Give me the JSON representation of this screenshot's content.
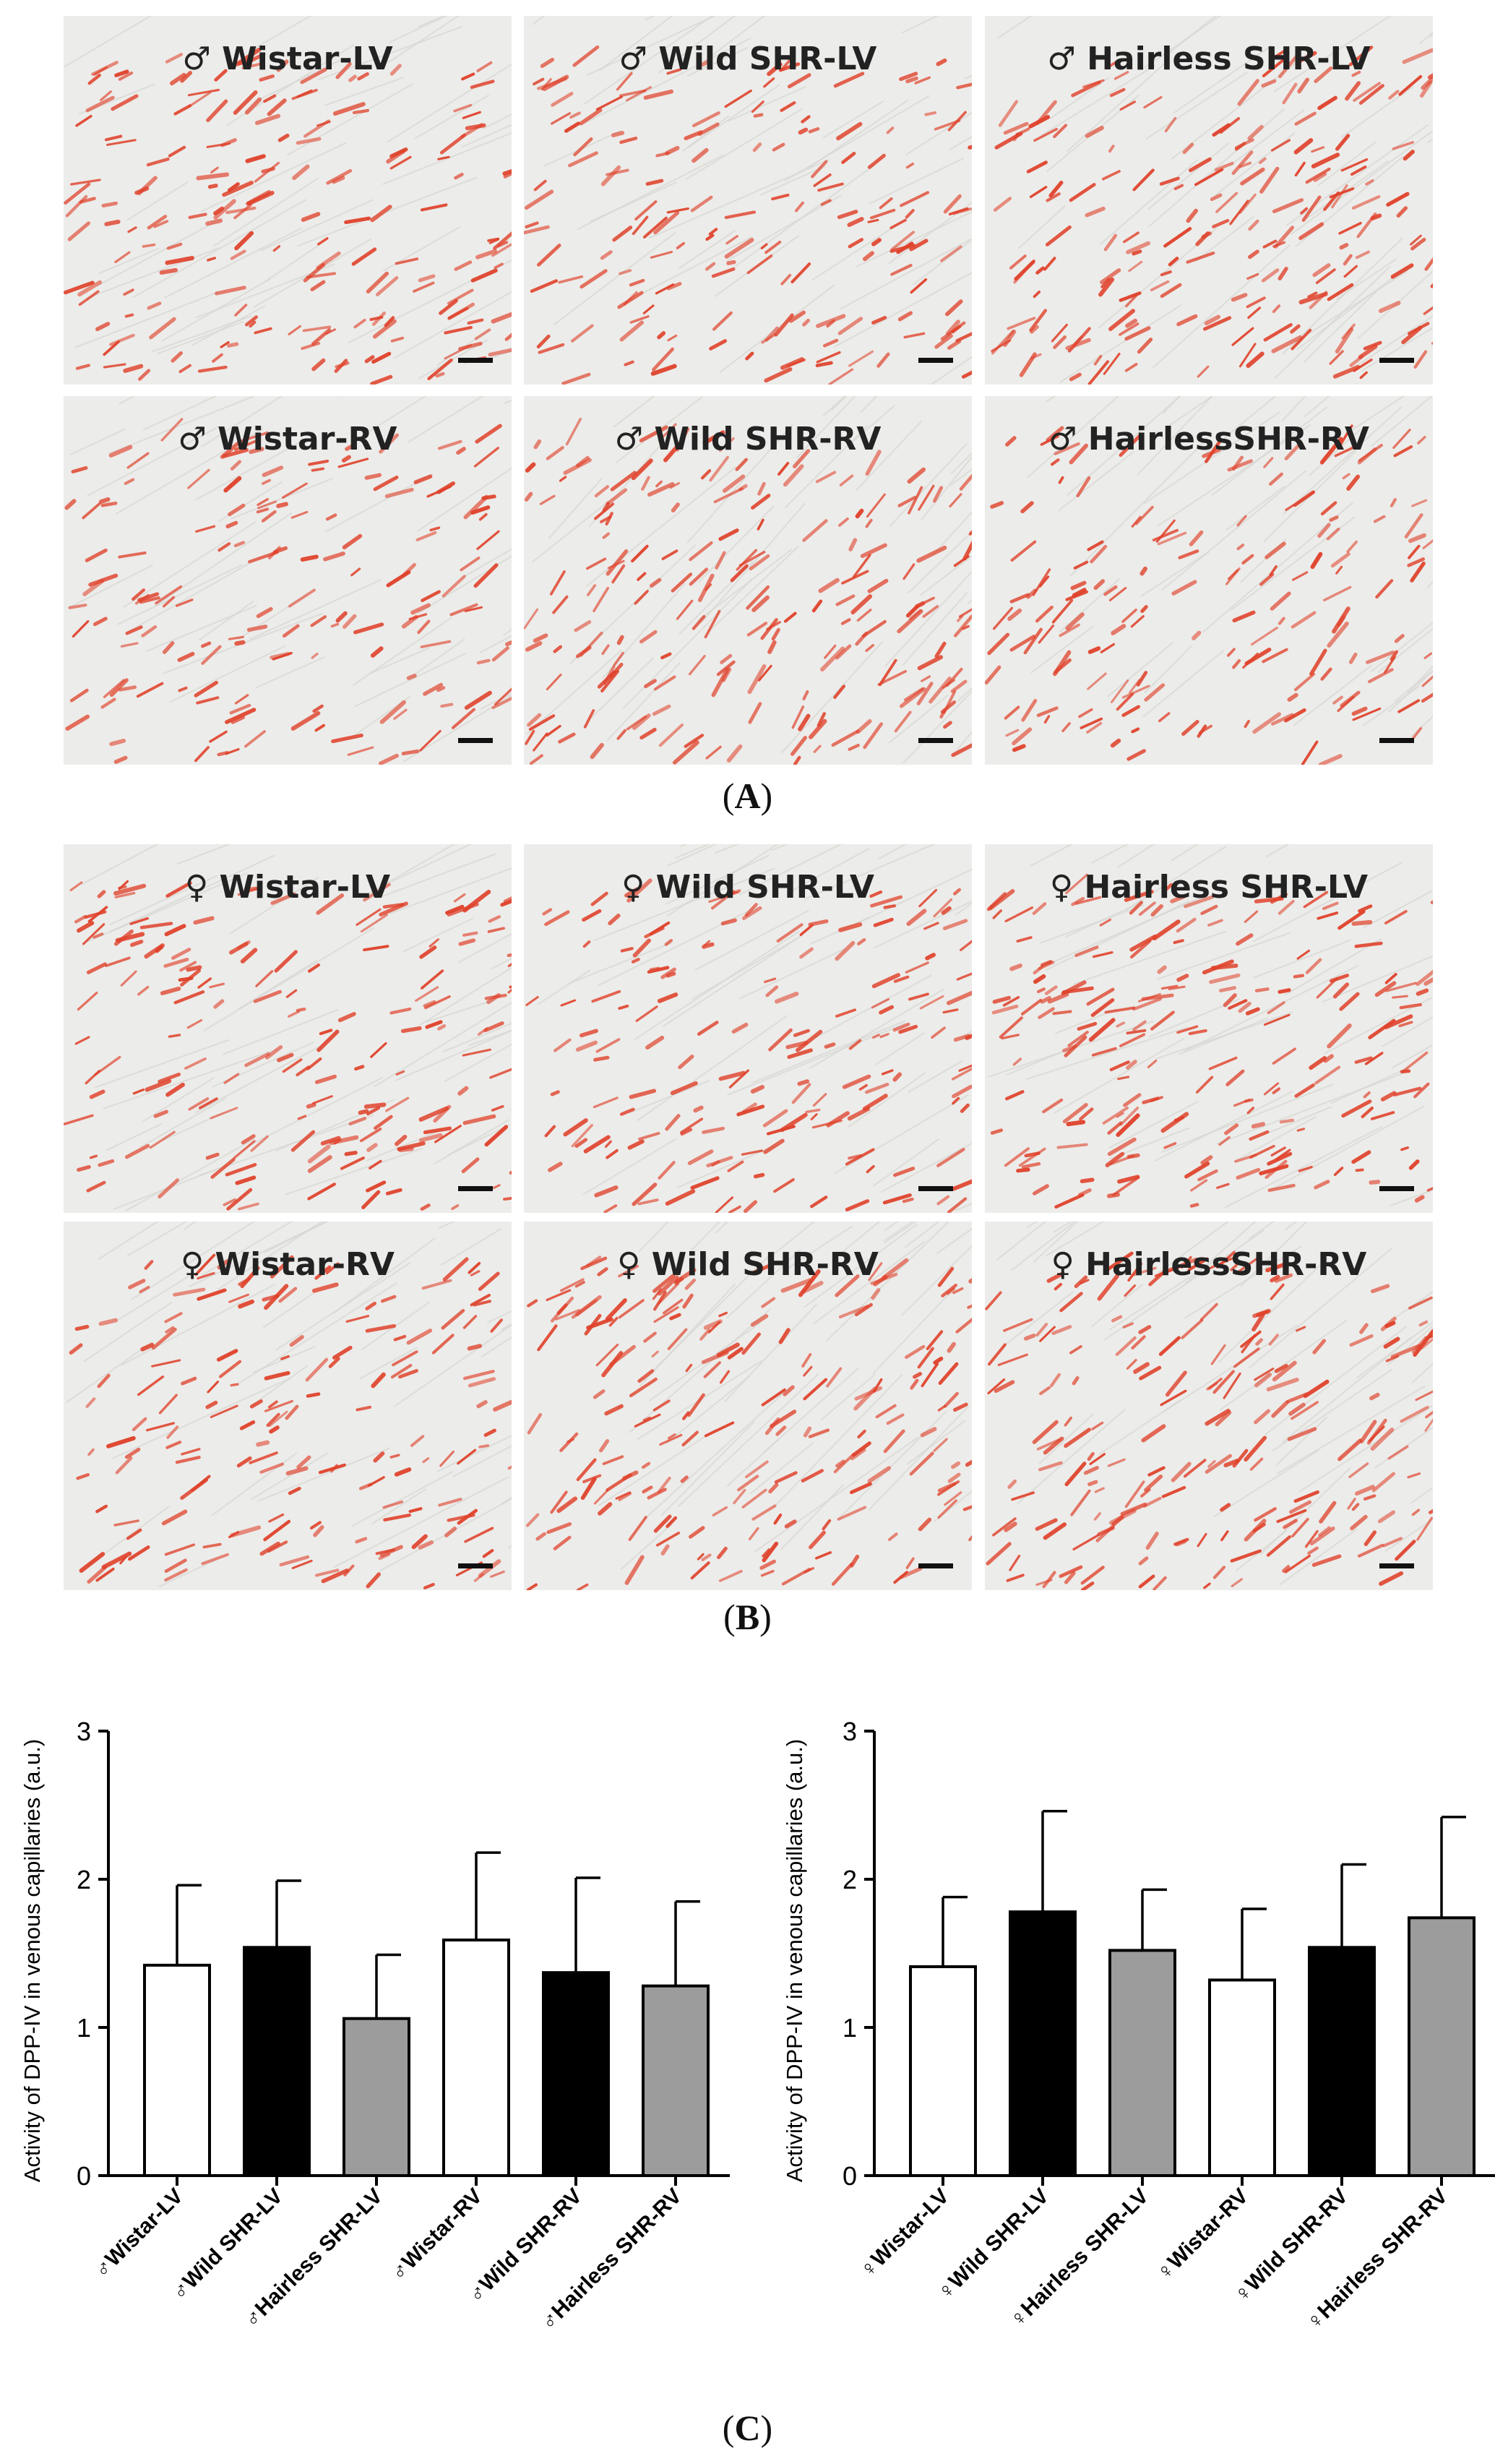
{
  "panelA": {
    "label": "A",
    "images": [
      {
        "label": "♂ Wistar-LV"
      },
      {
        "label": "♂ Wild SHR-LV"
      },
      {
        "label": "♂ Hairless SHR-LV"
      },
      {
        "label": "♂ Wistar-RV"
      },
      {
        "label": "♂ Wild SHR-RV"
      },
      {
        "label": "♂ HairlessSHR-RV"
      }
    ]
  },
  "panelB": {
    "label": "B",
    "images": [
      {
        "label": "♀ Wistar-LV"
      },
      {
        "label": "♀ Wild SHR-LV"
      },
      {
        "label": "♀ Hairless SHR-LV"
      },
      {
        "label": "♀ Wistar-RV"
      },
      {
        "label": "♀ Wild SHR-RV"
      },
      {
        "label": "♀ HairlessSHR-RV"
      }
    ]
  },
  "panelC": {
    "label": "C"
  },
  "colors": {
    "white_bar": "#ffffff",
    "black_bar": "#000000",
    "gray_bar": "#9c9c9c",
    "stain": "#e0412a",
    "tissue": "#ececea"
  },
  "chart_data": [
    {
      "type": "bar",
      "ylabel": "Activity of DPP-IV in venous capillaries (a.u.)",
      "xlabel": "",
      "ylim": [
        0,
        3
      ],
      "yticks": [
        "0",
        "1",
        "2",
        "3"
      ],
      "grid": false,
      "categories": [
        "♂Wistar-LV",
        "♂Wild SHR-LV",
        "♂Hairless SHR-LV",
        "♂Wistar-RV",
        "♂Wild SHR-RV",
        "♂Hairless SHR-RV"
      ],
      "values": [
        1.42,
        1.54,
        1.06,
        1.59,
        1.37,
        1.28
      ],
      "errors": [
        0.54,
        0.45,
        0.43,
        0.59,
        0.64,
        0.57
      ],
      "bar_colors": [
        "white",
        "black",
        "gray",
        "white",
        "black",
        "gray"
      ]
    },
    {
      "type": "bar",
      "ylabel": "Activity of DPP-IV in venous capillaries (a.u.)",
      "xlabel": "",
      "ylim": [
        0,
        3
      ],
      "yticks": [
        "0",
        "1",
        "2",
        "3"
      ],
      "grid": false,
      "categories": [
        "♀Wistar-LV",
        "♀Wild SHR-LV",
        "♀Hairless SHR-LV",
        "♀Wistar-RV",
        "♀Wild SHR-RV",
        "♀Hairless SHR-RV"
      ],
      "values": [
        1.41,
        1.78,
        1.52,
        1.32,
        1.54,
        1.74
      ],
      "errors": [
        0.47,
        0.68,
        0.41,
        0.48,
        0.56,
        0.68
      ],
      "bar_colors": [
        "white",
        "black",
        "gray",
        "white",
        "black",
        "gray"
      ]
    }
  ]
}
